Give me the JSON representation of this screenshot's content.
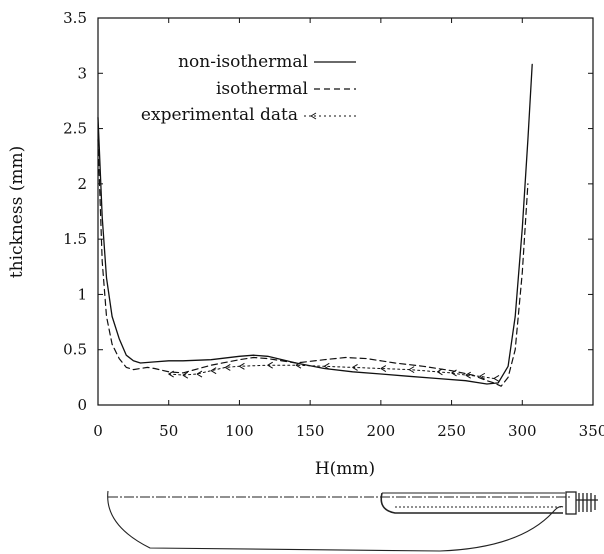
{
  "chart_data": {
    "type": "line",
    "xlabel": "H(mm)",
    "ylabel": "thickness (mm)",
    "xlim": [
      0,
      350
    ],
    "ylim": [
      0,
      3.5
    ],
    "xticks": [
      0,
      50,
      100,
      150,
      200,
      250,
      300,
      350
    ],
    "yticks": [
      0,
      0.5,
      1,
      1.5,
      2,
      2.5,
      3,
      3.5
    ],
    "xtick_labels": [
      "0",
      "50",
      "100",
      "150",
      "200",
      "250",
      "300",
      "350"
    ],
    "ytick_labels": [
      "0",
      "0.5",
      "1",
      "1.5",
      "2",
      "2.5",
      "3",
      "3.5"
    ],
    "grid": false,
    "legend_position": "top-left",
    "series": [
      {
        "name": "non-isothermal",
        "style": "solid",
        "x": [
          0,
          3,
          6,
          10,
          15,
          20,
          25,
          30,
          40,
          50,
          60,
          80,
          100,
          110,
          120,
          140,
          160,
          180,
          200,
          220,
          240,
          260,
          275,
          283,
          290,
          295,
          300,
          304,
          307
        ],
        "y": [
          2.6,
          1.7,
          1.15,
          0.8,
          0.6,
          0.45,
          0.4,
          0.38,
          0.39,
          0.4,
          0.4,
          0.41,
          0.44,
          0.45,
          0.44,
          0.38,
          0.33,
          0.3,
          0.28,
          0.26,
          0.24,
          0.22,
          0.19,
          0.2,
          0.35,
          0.8,
          1.6,
          2.4,
          3.08
        ]
      },
      {
        "name": "isothermal",
        "style": "dashed",
        "x": [
          0,
          3,
          6,
          10,
          15,
          20,
          25,
          30,
          35,
          40,
          50,
          60,
          80,
          100,
          110,
          120,
          140,
          160,
          175,
          190,
          210,
          230,
          250,
          265,
          275,
          280,
          285,
          290,
          295,
          300,
          304
        ],
        "y": [
          2.4,
          1.3,
          0.8,
          0.55,
          0.42,
          0.34,
          0.32,
          0.33,
          0.34,
          0.33,
          0.3,
          0.29,
          0.36,
          0.41,
          0.43,
          0.42,
          0.38,
          0.41,
          0.43,
          0.42,
          0.38,
          0.35,
          0.31,
          0.27,
          0.22,
          0.2,
          0.17,
          0.25,
          0.5,
          1.2,
          2.0
        ]
      },
      {
        "name": "experimental data",
        "style": "dotted-markers",
        "x": [
          50,
          60,
          70,
          80,
          90,
          100,
          120,
          140,
          160,
          180,
          200,
          220,
          240,
          250,
          260,
          270,
          280
        ],
        "y": [
          0.28,
          0.27,
          0.28,
          0.31,
          0.34,
          0.35,
          0.36,
          0.36,
          0.35,
          0.34,
          0.33,
          0.32,
          0.3,
          0.29,
          0.27,
          0.26,
          0.24
        ]
      }
    ]
  }
}
